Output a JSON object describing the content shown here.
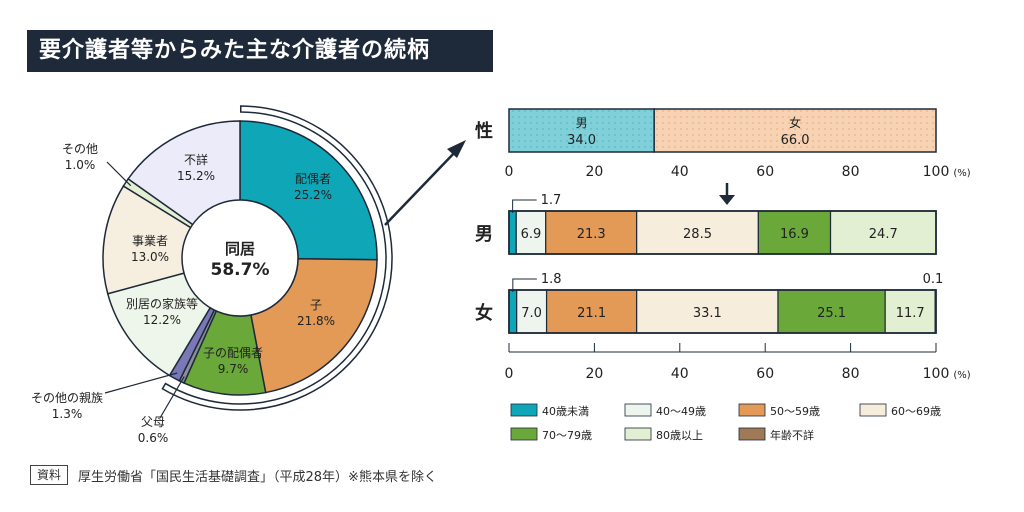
{
  "title": "要介護者等からみた主な介護者の続柄",
  "source_tag": "資料",
  "source_text": "厚生労働省「国民生活基礎調査」（平成28年）※熊本県を除く",
  "colors": {
    "spouse": "#0fa6b8",
    "child": "#e39a57",
    "child_spouse": "#6aa83a",
    "parent": "#8a8f99",
    "other_relative": "#7b78b8",
    "separate_family": "#eef5ea",
    "business": "#f6efe0",
    "other": "#e3efd3",
    "unknown": "#ebebfa",
    "male": "#7fd0d9",
    "female": "#f7d3b3",
    "age_lt40": "#0fa6b8",
    "age_40s": "#eef4ee",
    "age_50s": "#e39a57",
    "age_60s": "#f6eddc",
    "age_70s": "#6aa83a",
    "age_80p": "#e3efd3",
    "age_unknown": "#a07a56"
  },
  "chart_data": [
    {
      "type": "pie",
      "center_label": "同居",
      "center_value": "58.7%",
      "slices": [
        {
          "label": "配偶者",
          "value": 25.2,
          "value_text": "25.2%",
          "color_key": "spouse"
        },
        {
          "label": "子",
          "value": 21.8,
          "value_text": "21.8%",
          "color_key": "child"
        },
        {
          "label": "子の配偶者",
          "value": 9.7,
          "value_text": "9.7%",
          "color_key": "child_spouse"
        },
        {
          "label": "父母",
          "value": 0.6,
          "value_text": "0.6%",
          "color_key": "parent"
        },
        {
          "label": "その他の親族",
          "value": 1.3,
          "value_text": "1.3%",
          "color_key": "other_relative"
        },
        {
          "label": "別居の家族等",
          "value": 12.2,
          "value_text": "12.2%",
          "color_key": "separate_family"
        },
        {
          "label": "事業者",
          "value": 13.0,
          "value_text": "13.0%",
          "color_key": "business"
        },
        {
          "label": "その他",
          "value": 1.0,
          "value_text": "1.0%",
          "color_key": "other"
        },
        {
          "label": "不詳",
          "value": 15.2,
          "value_text": "15.2%",
          "color_key": "unknown"
        }
      ]
    },
    {
      "type": "bar",
      "orientation": "horizontal-stacked",
      "row_label": "性",
      "xlim": [
        0,
        100
      ],
      "ticks": [
        "0",
        "20",
        "40",
        "60",
        "80",
        "100"
      ],
      "unit": "(%)",
      "segments": [
        {
          "label": "男",
          "value": 34.0,
          "value_text": "34.0",
          "color_key": "male"
        },
        {
          "label": "女",
          "value": 66.0,
          "value_text": "66.0",
          "color_key": "female"
        }
      ]
    },
    {
      "type": "bar",
      "orientation": "horizontal-stacked",
      "xlim": [
        0,
        100
      ],
      "ticks": [
        "0",
        "20",
        "40",
        "60",
        "80",
        "100"
      ],
      "unit": "(%)",
      "legend": [
        {
          "name": "40歳未満",
          "color_key": "age_lt40"
        },
        {
          "name": "40～49歳",
          "color_key": "age_40s"
        },
        {
          "name": "50～59歳",
          "color_key": "age_50s"
        },
        {
          "name": "60～69歳",
          "color_key": "age_60s"
        },
        {
          "name": "70～79歳",
          "color_key": "age_70s"
        },
        {
          "name": "80歳以上",
          "color_key": "age_80p"
        },
        {
          "name": "年齢不詳",
          "color_key": "age_unknown"
        }
      ],
      "rows": [
        {
          "label": "男",
          "values": [
            1.7,
            6.9,
            21.3,
            28.5,
            16.9,
            24.7,
            0
          ],
          "value_texts": [
            "1.7",
            "6.9",
            "21.3",
            "28.5",
            "16.9",
            "24.7",
            ""
          ]
        },
        {
          "label": "女",
          "values": [
            1.8,
            7.0,
            21.1,
            33.1,
            25.1,
            11.7,
            0.1
          ],
          "value_texts": [
            "1.8",
            "7.0",
            "21.1",
            "33.1",
            "25.1",
            "11.7",
            "0.1"
          ]
        }
      ]
    }
  ]
}
